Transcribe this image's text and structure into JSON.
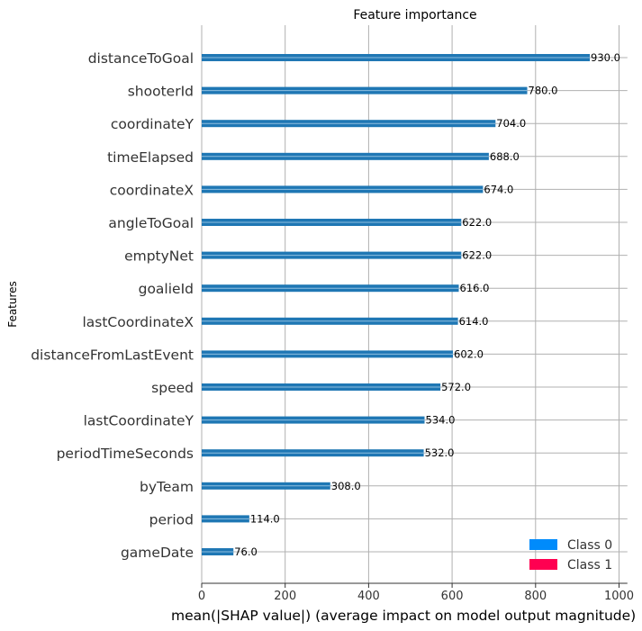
{
  "chart_data": {
    "type": "bar",
    "orientation": "horizontal",
    "title": "Feature importance",
    "xlabel": "mean(|SHAP value|) (average impact on model output magnitude)",
    "ylabel": "Features",
    "xlim": [
      0,
      1020
    ],
    "xticks": [
      0,
      200,
      400,
      600,
      800,
      1000
    ],
    "grid": true,
    "legend_position": "bottom-right",
    "categories": [
      "distanceToGoal",
      "shooterId",
      "coordinateY",
      "timeElapsed",
      "coordinateX",
      "angleToGoal",
      "emptyNet",
      "goalieId",
      "lastCoordinateX",
      "distanceFromLastEvent",
      "speed",
      "lastCoordinateY",
      "periodTimeSeconds",
      "byTeam",
      "period",
      "gameDate"
    ],
    "values": [
      930,
      780,
      704,
      688,
      674,
      622,
      622,
      616,
      614,
      602,
      572,
      534,
      532,
      308,
      114,
      76
    ],
    "data_labels": [
      "930.0",
      "780.0",
      "704.0",
      "688.0",
      "674.0",
      "622.0",
      "622.0",
      "616.0",
      "614.0",
      "602.0",
      "572.0",
      "534.0",
      "532.0",
      "308.0",
      "114.0",
      "76.0"
    ],
    "bar_color": "#1f77b4",
    "legend": [
      {
        "name": "Class 0",
        "color": "#008bfb"
      },
      {
        "name": "Class 1",
        "color": "#ff0051"
      }
    ]
  }
}
